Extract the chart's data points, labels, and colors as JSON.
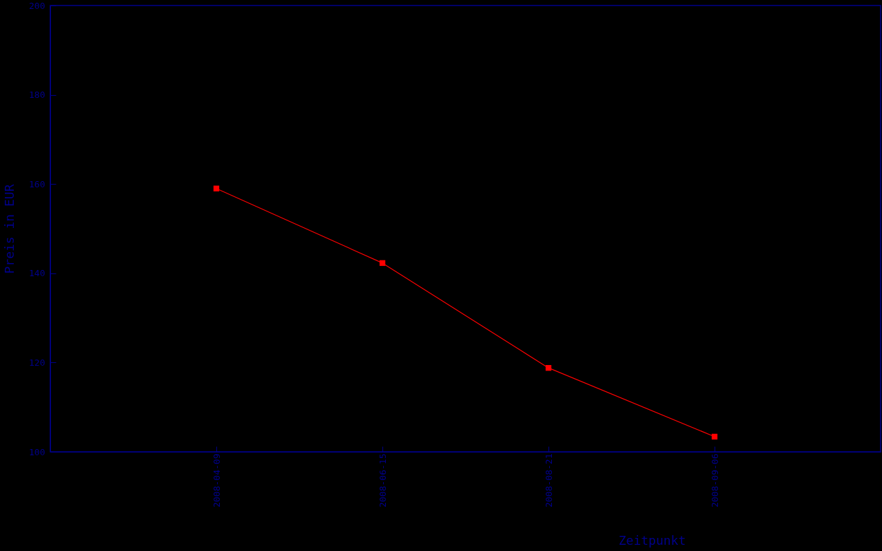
{
  "chart_data": {
    "type": "line",
    "xlabel": "Zeitpunkt",
    "ylabel": "Preis in EUR",
    "categories": [
      "2008-04-09",
      "2008-06-15",
      "2008-08-21",
      "2008-09-06"
    ],
    "series": [
      {
        "color": "#ff0000",
        "values": [
          159,
          142.3,
          118.8,
          103.4
        ]
      }
    ],
    "ylim": [
      100,
      200
    ],
    "yticks": [
      100,
      120,
      140,
      160,
      180,
      200
    ],
    "grid": false,
    "marker": "square",
    "line_style": "solid"
  }
}
